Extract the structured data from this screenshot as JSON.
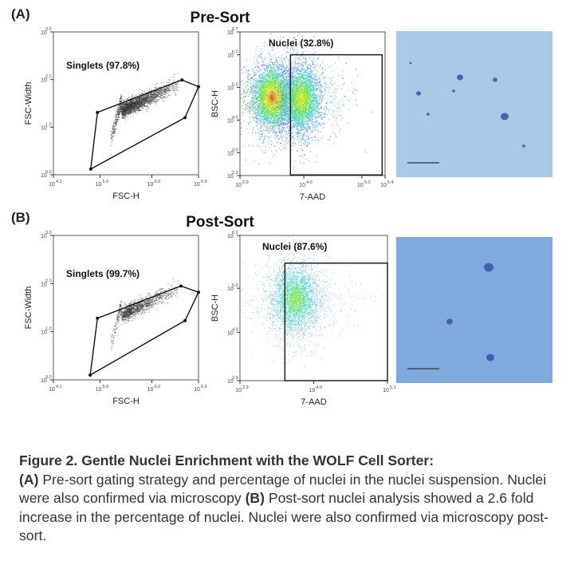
{
  "panels": [
    {
      "label": "(A)",
      "title": "Pre-Sort",
      "singlets_plot": {
        "gate_label": "Singlets (97.8%)",
        "xlabel": "FSC-H",
        "ylabel": "FSC-Width",
        "xlim": [
          4.1,
          6.9
        ],
        "ylim": [
          0.0,
          3.0
        ],
        "xticks": [
          "4.1",
          "5.0",
          "6.0",
          "6.9"
        ],
        "yticks": [
          "0.0",
          "1.0",
          "2.0",
          "3.0"
        ],
        "tick_base": "10",
        "gate": [
          [
            4.82,
            0.12
          ],
          [
            4.95,
            1.31
          ],
          [
            6.58,
            1.99
          ],
          [
            6.9,
            1.85
          ],
          [
            6.64,
            1.2
          ]
        ]
      },
      "nuclei_plot": {
        "gate_label": "Nuclei (32.8%)",
        "xlabel": "7-AAD",
        "ylabel": "BSC-H",
        "xlim": [
          2.9,
          5.4
        ],
        "ylim": [
          2.3,
          6.7
        ],
        "xticks": [
          "2.9",
          "4.0",
          "5.0",
          "5.4"
        ],
        "yticks": [
          "2.3",
          "3.0",
          "4.0",
          "5.0",
          "6.0",
          "6.7"
        ],
        "tick_base": "10",
        "gate": [
          3.77,
          5.35,
          2.32,
          6.0
        ]
      },
      "microscopy_bg": "#a8cae8"
    },
    {
      "label": "(B)",
      "title": "Post-Sort",
      "singlets_plot": {
        "gate_label": "Singlets (99.7%)",
        "xlabel": "FSC-H",
        "ylabel": "FSC-Width",
        "xlim": [
          4.1,
          6.9
        ],
        "ylim": [
          0.0,
          3.0
        ],
        "xticks": [
          "4.1",
          "5.0",
          "6.0",
          "6.9"
        ],
        "yticks": [
          "0.0",
          "1.0",
          "2.0",
          "3.0"
        ],
        "tick_base": "10",
        "gate": [
          [
            4.81,
            0.1
          ],
          [
            4.95,
            1.28
          ],
          [
            6.56,
            1.95
          ],
          [
            6.9,
            1.82
          ],
          [
            6.64,
            1.23
          ]
        ]
      },
      "nuclei_plot": {
        "gate_label": "Nuclei (87.6%)",
        "xlabel": "7-AAD",
        "ylabel": "BSC-H",
        "xlim": [
          2.9,
          5.1
        ],
        "ylim": [
          2.9,
          6.2
        ],
        "xticks": [
          "2.9",
          "4.0",
          "5.1"
        ],
        "yticks": [
          "2.9",
          "4.0",
          "5.0",
          "6.2"
        ],
        "tick_base": "10",
        "gate": [
          3.57,
          5.1,
          2.9,
          5.57
        ]
      },
      "microscopy_bg": "#80aadd"
    }
  ],
  "caption": {
    "heading": "Figure 2. Gentle Nuclei Enrichment with the WOLF Cell Sorter:",
    "a_label": "(A)",
    "a_text": " Pre-sort gating strategy and percentage of nuclei in the nuclei suspension. Nuclei were also confirmed via microscopy ",
    "b_label": "(B)",
    "b_text": " Post-sort nuclei analysis showed a 2.6 fold increase in the percentage of nuclei. Nuclei were also confirmed via microscopy post-sort."
  }
}
